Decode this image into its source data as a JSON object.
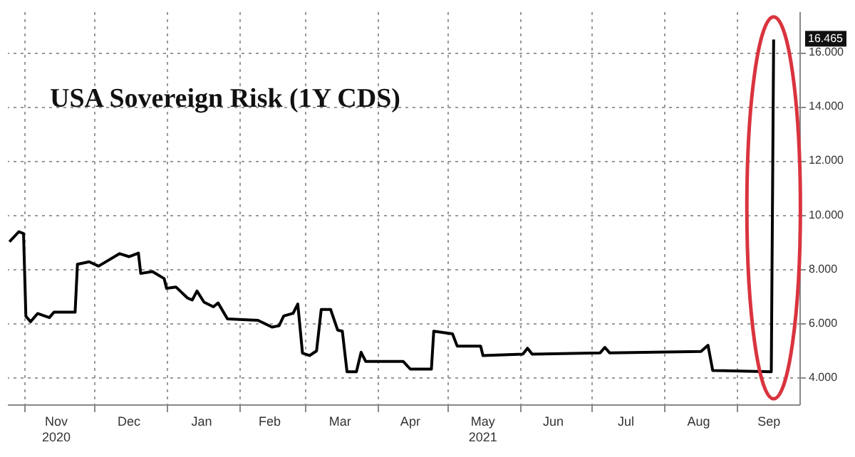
{
  "chart_data": {
    "type": "line",
    "title": "USA Sovereign Risk (1Y CDS)",
    "x": [
      "2020-10-26",
      "2020-10-30",
      "2020-11-01",
      "2020-11-02",
      "2020-11-04",
      "2020-11-07",
      "2020-11-12",
      "2020-11-14",
      "2020-11-23",
      "2020-11-24",
      "2020-11-29",
      "2020-12-03",
      "2020-12-12",
      "2020-12-16",
      "2020-12-20",
      "2020-12-21",
      "2020-12-26",
      "2020-12-31",
      "2021-01-01",
      "2021-01-05",
      "2021-01-10",
      "2021-01-12",
      "2021-01-14",
      "2021-01-17",
      "2021-01-21",
      "2021-01-23",
      "2021-01-27",
      "2021-02-09",
      "2021-02-15",
      "2021-02-18",
      "2021-02-20",
      "2021-02-24",
      "2021-02-26",
      "2021-02-28",
      "2021-03-03",
      "2021-03-06",
      "2021-03-08",
      "2021-03-12",
      "2021-03-15",
      "2021-03-17",
      "2021-03-19",
      "2021-03-23",
      "2021-03-25",
      "2021-03-27",
      "2021-04-12",
      "2021-04-15",
      "2021-04-24",
      "2021-04-25",
      "2021-05-03",
      "2021-05-05",
      "2021-05-15",
      "2021-05-16",
      "2021-06-02",
      "2021-06-04",
      "2021-06-06",
      "2021-07-05",
      "2021-07-07",
      "2021-07-09",
      "2021-08-17",
      "2021-08-20",
      "2021-08-22",
      "2021-09-16",
      "2021-09-17"
    ],
    "series": [
      {
        "color": "#000000",
        "values": [
          9.0,
          9.37,
          9.3,
          6.25,
          6.05,
          6.35,
          6.2,
          6.4,
          6.4,
          8.17,
          8.26,
          8.1,
          8.56,
          8.45,
          8.58,
          7.83,
          7.9,
          7.64,
          7.28,
          7.33,
          6.92,
          6.85,
          7.18,
          6.77,
          6.6,
          6.74,
          6.15,
          6.1,
          5.85,
          5.9,
          6.26,
          6.36,
          6.7,
          4.89,
          4.8,
          4.97,
          6.5,
          6.5,
          5.74,
          5.7,
          4.2,
          4.2,
          4.92,
          4.58,
          4.58,
          4.3,
          4.3,
          5.7,
          5.6,
          5.15,
          5.15,
          4.8,
          4.85,
          5.07,
          4.85,
          4.9,
          5.1,
          4.9,
          4.95,
          5.18,
          4.25,
          4.2,
          16.465
        ]
      }
    ],
    "xlim": [
      "2020-10-25",
      "2021-09-28"
    ],
    "xticks": [
      {
        "value": "2020-11-01",
        "label": null
      },
      {
        "value": "2020-11-15",
        "label": "Nov\n2020"
      },
      {
        "value": "2020-12-01",
        "label": null
      },
      {
        "value": "2020-12-16",
        "label": "Dec"
      },
      {
        "value": "2021-01-01",
        "label": null
      },
      {
        "value": "2021-01-16",
        "label": "Jan"
      },
      {
        "value": "2021-02-01",
        "label": null
      },
      {
        "value": "2021-02-14",
        "label": "Feb"
      },
      {
        "value": "2021-03-01",
        "label": null
      },
      {
        "value": "2021-03-16",
        "label": "Mar"
      },
      {
        "value": "2021-04-01",
        "label": null
      },
      {
        "value": "2021-04-15",
        "label": "Apr"
      },
      {
        "value": "2021-05-01",
        "label": null
      },
      {
        "value": "2021-05-16",
        "label": "May\n2021"
      },
      {
        "value": "2021-06-01",
        "label": null
      },
      {
        "value": "2021-06-15",
        "label": "Jun"
      },
      {
        "value": "2021-07-01",
        "label": null
      },
      {
        "value": "2021-07-16",
        "label": "Jul"
      },
      {
        "value": "2021-08-01",
        "label": null
      },
      {
        "value": "2021-08-16",
        "label": "Aug"
      },
      {
        "value": "2021-09-01",
        "label": null
      },
      {
        "value": "2021-09-15",
        "label": "Sep"
      }
    ],
    "ylim": [
      3,
      17.5
    ],
    "yticks": [
      {
        "value": 4,
        "label": "4.000"
      },
      {
        "value": 6,
        "label": "6.000"
      },
      {
        "value": 8,
        "label": "8.000"
      },
      {
        "value": 10,
        "label": "10.000"
      },
      {
        "value": 12,
        "label": "12.000"
      },
      {
        "value": 14,
        "label": "14.000"
      },
      {
        "value": 16,
        "label": "16.000"
      }
    ],
    "annotations": [
      {
        "text": "16.465",
        "x": "2021-09-17",
        "y": 16.465
      }
    ],
    "grid": true,
    "marker": "none",
    "line_style": "solid"
  }
}
